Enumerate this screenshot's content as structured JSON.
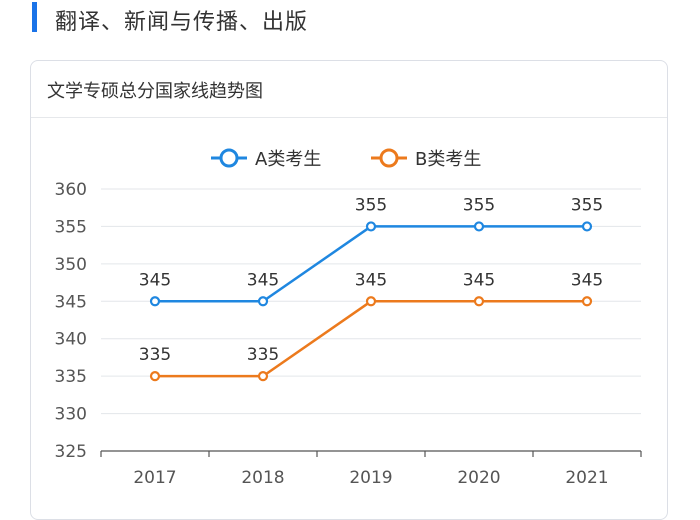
{
  "section": {
    "title": "翻译、新闻与传播、出版"
  },
  "card": {
    "title": "文学专硕总分国家线趋势图"
  },
  "colors": {
    "accent": "#1a73e8",
    "seriesA": "#1f87e0",
    "seriesB": "#ec7a1d"
  },
  "chart_data": {
    "type": "line",
    "title": "文学专硕总分国家线趋势图",
    "categories": [
      "2017",
      "2018",
      "2019",
      "2020",
      "2021"
    ],
    "series": [
      {
        "name": "A类考生",
        "values": [
          345,
          345,
          355,
          355,
          355
        ]
      },
      {
        "name": "B类考生",
        "values": [
          335,
          335,
          345,
          345,
          345
        ]
      }
    ],
    "ylim": [
      325,
      360
    ],
    "yticks": [
      325,
      330,
      335,
      340,
      345,
      350,
      355,
      360
    ],
    "xlabel": "",
    "ylabel": "",
    "grid": true,
    "legend": "top-center",
    "data_labels": true
  }
}
